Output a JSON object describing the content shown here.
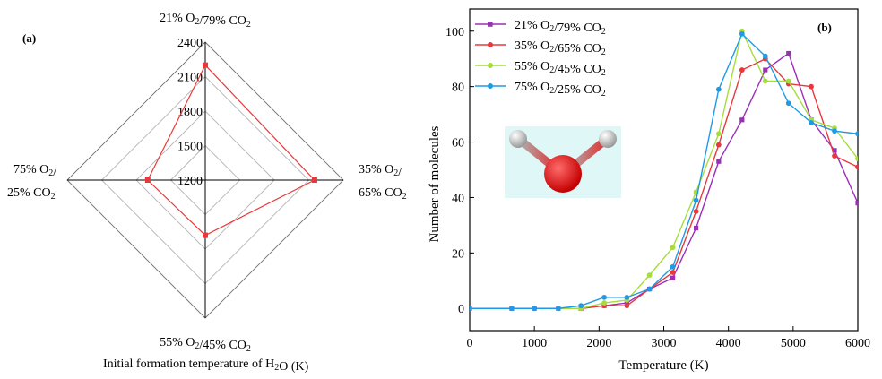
{
  "chart_data": [
    {
      "type": "radar",
      "panel_label": "(a)",
      "axis_title": "Initial formation temperature of H₂O (K)",
      "axes": [
        {
          "line1": "21% O₂/79% CO₂",
          "line2": ""
        },
        {
          "line1": "35% O₂/",
          "line2": "65% CO₂"
        },
        {
          "line1": "55% O₂/45% CO₂",
          "line2": ""
        },
        {
          "line1": "75% O₂/",
          "line2": "25% CO₂"
        }
      ],
      "rings": [
        1200,
        1500,
        1800,
        2100,
        2400
      ],
      "ring_labels": [
        "1200",
        "1500",
        "1800",
        "2100",
        "2400"
      ],
      "range": [
        1200,
        2400
      ],
      "values": [
        2200,
        2150,
        1680,
        1700
      ],
      "series_color": "#e8383b"
    },
    {
      "type": "line",
      "panel_label": "(b)",
      "xlabel": "Temperature (K)",
      "ylabel": "Number of molecules",
      "xlim": [
        0,
        6000
      ],
      "ylim": [
        -8,
        108
      ],
      "xticks": [
        0,
        1000,
        2000,
        3000,
        4000,
        5000,
        6000
      ],
      "yticks": [
        0,
        20,
        40,
        60,
        80,
        100
      ],
      "xtick_labels": [
        "0",
        "1000",
        "2000",
        "3000",
        "4000",
        "5000",
        "6000"
      ],
      "ytick_labels": [
        "0",
        "20",
        "40",
        "60",
        "80",
        "100"
      ],
      "legend_position": "top-left",
      "series": [
        {
          "name": "21% O₂/79% CO₂",
          "color": "#9b2fb8",
          "marker": "square",
          "points": [
            [
              0,
              0
            ],
            [
              650,
              0
            ],
            [
              1000,
              0
            ],
            [
              1370,
              0
            ],
            [
              1720,
              0
            ],
            [
              2080,
              1
            ],
            [
              2430,
              2
            ],
            [
              2780,
              7
            ],
            [
              3140,
              11
            ],
            [
              3500,
              29
            ],
            [
              3850,
              53
            ],
            [
              4210,
              68
            ],
            [
              4570,
              86
            ],
            [
              4930,
              92
            ],
            [
              5280,
              68
            ],
            [
              5640,
              57
            ],
            [
              6000,
              38
            ]
          ]
        },
        {
          "name": "35% O₂/65% CO₂",
          "color": "#e8383b",
          "marker": "circle",
          "points": [
            [
              0,
              0
            ],
            [
              650,
              0
            ],
            [
              1000,
              0
            ],
            [
              1370,
              0
            ],
            [
              1720,
              0
            ],
            [
              2080,
              1
            ],
            [
              2430,
              1
            ],
            [
              2780,
              7
            ],
            [
              3140,
              13
            ],
            [
              3500,
              35
            ],
            [
              3850,
              59
            ],
            [
              4210,
              86
            ],
            [
              4570,
              90
            ],
            [
              4930,
              81
            ],
            [
              5280,
              80
            ],
            [
              5640,
              55
            ],
            [
              6000,
              51
            ]
          ]
        },
        {
          "name": "55% O₂/45% CO₂",
          "color": "#a6dc3c",
          "marker": "circle",
          "points": [
            [
              0,
              0
            ],
            [
              650,
              0
            ],
            [
              1000,
              0
            ],
            [
              1370,
              0
            ],
            [
              1720,
              0
            ],
            [
              2080,
              2
            ],
            [
              2430,
              3
            ],
            [
              2780,
              12
            ],
            [
              3140,
              22
            ],
            [
              3500,
              42
            ],
            [
              3850,
              63
            ],
            [
              4210,
              100
            ],
            [
              4570,
              82
            ],
            [
              4930,
              82
            ],
            [
              5280,
              68
            ],
            [
              5640,
              65
            ],
            [
              6000,
              54
            ]
          ]
        },
        {
          "name": "75% O₂/25% CO₂",
          "color": "#1e9be6",
          "marker": "circle",
          "points": [
            [
              0,
              0
            ],
            [
              650,
              0
            ],
            [
              1000,
              0
            ],
            [
              1370,
              0
            ],
            [
              1720,
              1
            ],
            [
              2080,
              4
            ],
            [
              2430,
              4
            ],
            [
              2780,
              7
            ],
            [
              3140,
              15
            ],
            [
              3500,
              39
            ],
            [
              3850,
              79
            ],
            [
              4210,
              99
            ],
            [
              4570,
              91
            ],
            [
              4930,
              74
            ],
            [
              5280,
              67
            ],
            [
              5640,
              64
            ],
            [
              6000,
              63
            ]
          ]
        }
      ]
    }
  ]
}
